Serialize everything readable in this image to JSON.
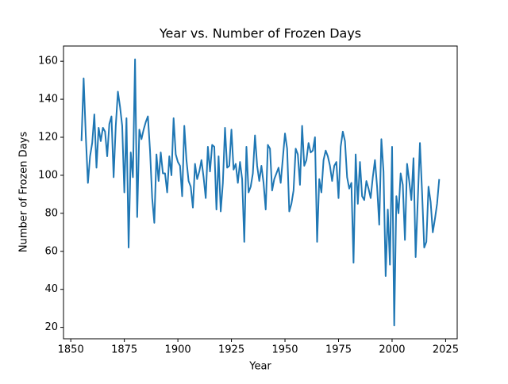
{
  "chart_data": {
    "type": "line",
    "title": "Year vs. Number of Frozen Days",
    "x_label": "Year",
    "y_label": "Number of Frozen Days",
    "x": [
      1855,
      1856,
      1857,
      1858,
      1859,
      1860,
      1861,
      1862,
      1863,
      1864,
      1865,
      1866,
      1867,
      1868,
      1869,
      1870,
      1871,
      1872,
      1873,
      1874,
      1875,
      1876,
      1877,
      1878,
      1879,
      1880,
      1881,
      1882,
      1883,
      1884,
      1885,
      1886,
      1887,
      1888,
      1889,
      1890,
      1891,
      1892,
      1893,
      1894,
      1895,
      1896,
      1897,
      1898,
      1899,
      1900,
      1901,
      1902,
      1903,
      1904,
      1905,
      1906,
      1907,
      1908,
      1909,
      1910,
      1911,
      1912,
      1913,
      1914,
      1915,
      1916,
      1917,
      1918,
      1919,
      1920,
      1921,
      1922,
      1923,
      1924,
      1925,
      1926,
      1927,
      1928,
      1929,
      1930,
      1931,
      1932,
      1933,
      1934,
      1935,
      1936,
      1937,
      1938,
      1939,
      1940,
      1941,
      1942,
      1943,
      1944,
      1945,
      1946,
      1947,
      1948,
      1949,
      1950,
      1951,
      1952,
      1953,
      1954,
      1955,
      1956,
      1957,
      1958,
      1959,
      1960,
      1961,
      1962,
      1963,
      1964,
      1965,
      1966,
      1967,
      1968,
      1969,
      1970,
      1971,
      1972,
      1973,
      1974,
      1975,
      1976,
      1977,
      1978,
      1979,
      1980,
      1981,
      1982,
      1983,
      1984,
      1985,
      1986,
      1987,
      1988,
      1989,
      1990,
      1991,
      1992,
      1993,
      1994,
      1995,
      1996,
      1997,
      1998,
      1999,
      2000,
      2001,
      2002,
      2003,
      2004,
      2005,
      2006,
      2007,
      2008,
      2009,
      2010,
      2011,
      2012,
      2013,
      2014,
      2015,
      2016,
      2017,
      2018,
      2019,
      2020,
      2021,
      2022
    ],
    "series": [
      {
        "name": "Frozen Days",
        "color": "#1f77b4",
        "values": [
          118,
          151,
          121,
          96,
          110,
          117,
          132,
          104,
          125,
          118,
          125,
          123,
          110,
          127,
          131,
          99,
          126,
          144,
          136,
          126,
          91,
          130,
          62,
          112,
          99,
          161,
          78,
          124,
          119,
          124,
          128,
          131,
          113,
          88,
          75,
          111,
          97,
          112,
          101,
          101,
          91,
          110,
          100,
          130,
          111,
          107,
          105,
          89,
          126,
          108,
          97,
          94,
          83,
          106,
          98,
          102,
          108,
          99,
          88,
          115,
          102,
          116,
          115,
          82,
          110,
          81,
          96,
          125,
          104,
          105,
          124,
          103,
          106,
          96,
          107,
          98,
          65,
          115,
          91,
          94,
          101,
          121,
          105,
          97,
          105,
          96,
          82,
          116,
          114,
          92,
          98,
          101,
          104,
          96,
          109,
          122,
          114,
          81,
          85,
          92,
          114,
          111,
          95,
          126,
          105,
          108,
          117,
          112,
          113,
          120,
          65,
          98,
          91,
          108,
          113,
          110,
          105,
          97,
          105,
          107,
          88,
          115,
          123,
          118,
          99,
          93,
          96,
          54,
          111,
          85,
          107,
          89,
          87,
          97,
          93,
          88,
          99,
          108,
          94,
          74,
          119,
          102,
          47,
          82,
          53,
          115,
          21,
          89,
          80,
          101,
          95,
          66,
          106,
          97,
          87,
          109,
          57,
          87,
          117,
          91,
          62,
          65,
          94,
          86,
          70,
          77,
          85,
          98
        ]
      }
    ],
    "xlim": [
      1846.6,
      2030.4
    ],
    "xticks": [
      1850,
      1875,
      1900,
      1925,
      1950,
      1975,
      2000,
      2025
    ],
    "ylim": [
      14,
      168
    ],
    "yticks": [
      20,
      40,
      60,
      80,
      100,
      120,
      140,
      160
    ]
  }
}
